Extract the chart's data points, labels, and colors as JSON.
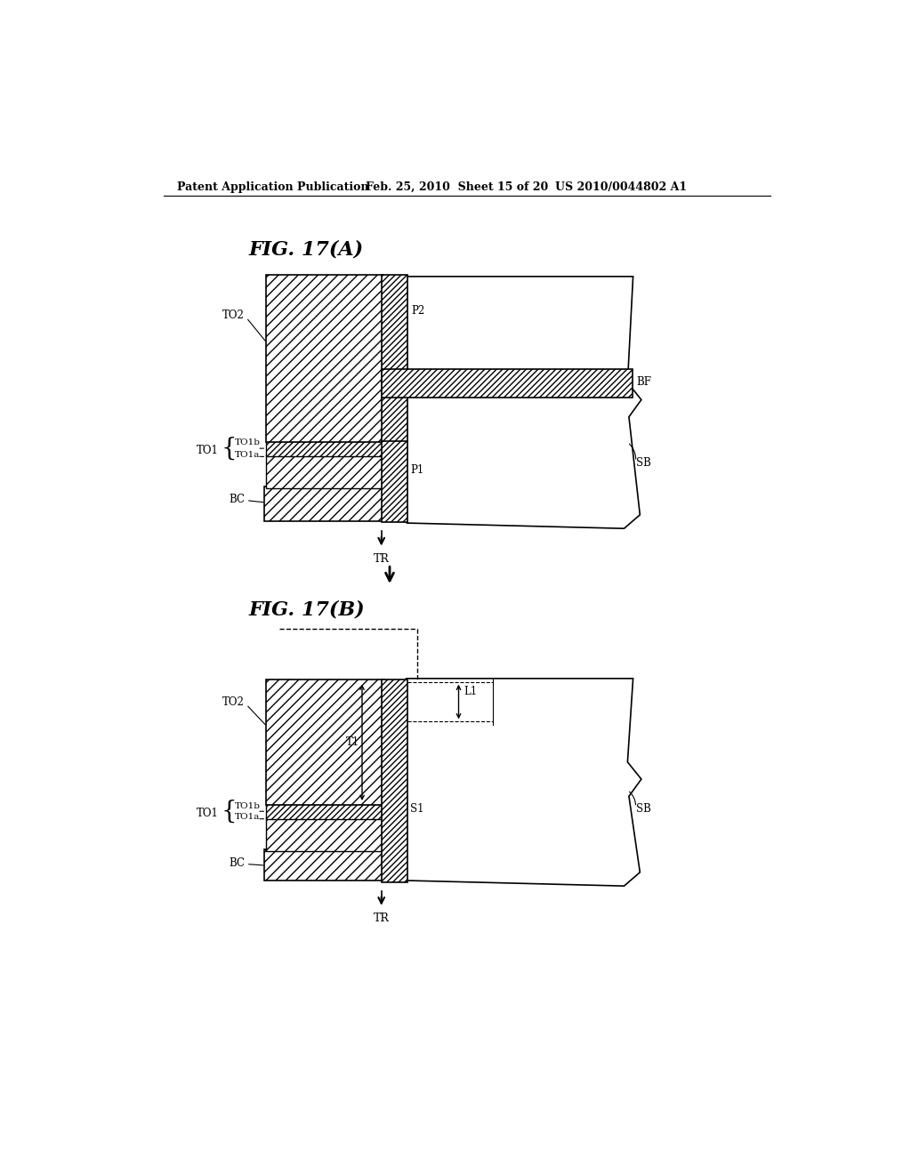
{
  "header_left": "Patent Application Publication",
  "header_mid": "Feb. 25, 2010  Sheet 15 of 20",
  "header_right": "US 2010/0044802 A1",
  "fig_a_title": "FIG. 17(A)",
  "fig_b_title": "FIG. 17(B)",
  "background": "#ffffff",
  "line_color": "#000000",
  "header_fontsize": 9,
  "title_fontsize": 16
}
